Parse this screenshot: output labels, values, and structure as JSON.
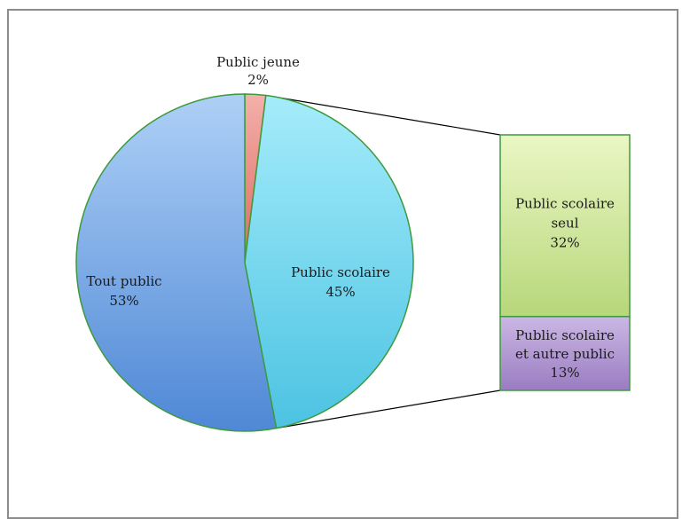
{
  "chart_data": {
    "type": "bar-of-pie",
    "title": "",
    "pie": {
      "slices": [
        {
          "name": "Public jeune",
          "value": 2,
          "label": "2%",
          "color": "#e9837b"
        },
        {
          "name": "Public scolaire",
          "value": 45,
          "label": "45%",
          "color": "#6fd4ec"
        },
        {
          "name": "Tout public",
          "value": 53,
          "label": "53%",
          "color": "#6ba0e2"
        }
      ]
    },
    "breakdown": {
      "of": "Public scolaire",
      "segments": [
        {
          "name_lines": [
            "Public scolaire",
            "seul"
          ],
          "value": 32,
          "label": "32%",
          "color": "#c4e08a"
        },
        {
          "name_lines": [
            "Public scolaire",
            "et autre public"
          ],
          "value": 13,
          "label": "13%",
          "color": "#a98dcc"
        }
      ]
    },
    "legend": "none",
    "grid": false
  }
}
